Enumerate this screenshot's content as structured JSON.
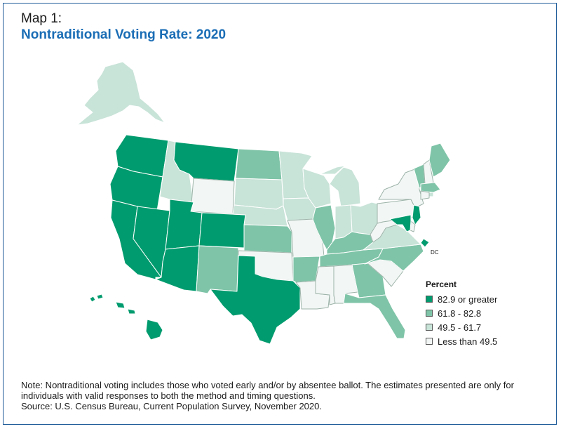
{
  "header": {
    "label": "Map 1:",
    "title": "Nontraditional Voting Rate: 2020"
  },
  "colors": {
    "very_high": "#009b6e",
    "high": "#7fc4a8",
    "medium": "#c8e3d8",
    "low": "#f2f7f5",
    "border": "#ffffff",
    "frame": "#1f5c99",
    "title": "#1a6db5"
  },
  "legend": {
    "title": "Percent",
    "items": [
      {
        "label": "82.9 or greater",
        "color": "#009b6e"
      },
      {
        "label": "61.8 - 82.8",
        "color": "#7fc4a8"
      },
      {
        "label": "49.5 - 61.7",
        "color": "#c8e3d8"
      },
      {
        "label": "Less than 49.5",
        "color": "#f2f7f5"
      }
    ]
  },
  "map": {
    "dc_label": "DC",
    "states": {
      "WA": "very_high",
      "OR": "very_high",
      "CA": "very_high",
      "NV": "very_high",
      "ID": "medium",
      "MT": "very_high",
      "WY": "low",
      "UT": "very_high",
      "CO": "very_high",
      "AZ": "very_high",
      "NM": "high",
      "TX": "very_high",
      "ND": "high",
      "SD": "medium",
      "NE": "medium",
      "KS": "high",
      "OK": "low",
      "MN": "medium",
      "IA": "medium",
      "MO": "low",
      "AR": "high",
      "LA": "low",
      "WI": "medium",
      "IL": "high",
      "MI": "medium",
      "IN": "medium",
      "OH": "medium",
      "KY": "high",
      "TN": "high",
      "MS": "low",
      "AL": "low",
      "GA": "high",
      "FL": "high",
      "SC": "low",
      "NC": "high",
      "VA": "medium",
      "WV": "low",
      "PA": "low",
      "NY": "low",
      "VT": "high",
      "NH": "low",
      "ME": "high",
      "MA": "high",
      "RI": "medium",
      "CT": "low",
      "NJ": "very_high",
      "DE": "low",
      "MD": "very_high",
      "DC": "very_high",
      "AK": "medium",
      "HI": "very_high"
    }
  },
  "notes": {
    "note": "Note: Nontraditional voting includes those who voted early and/or by absentee ballot. The estimates presented are only for individuals with valid responses to both the method and timing questions.",
    "source": "Source: U.S. Census Bureau, Current Population Survey, November 2020."
  }
}
